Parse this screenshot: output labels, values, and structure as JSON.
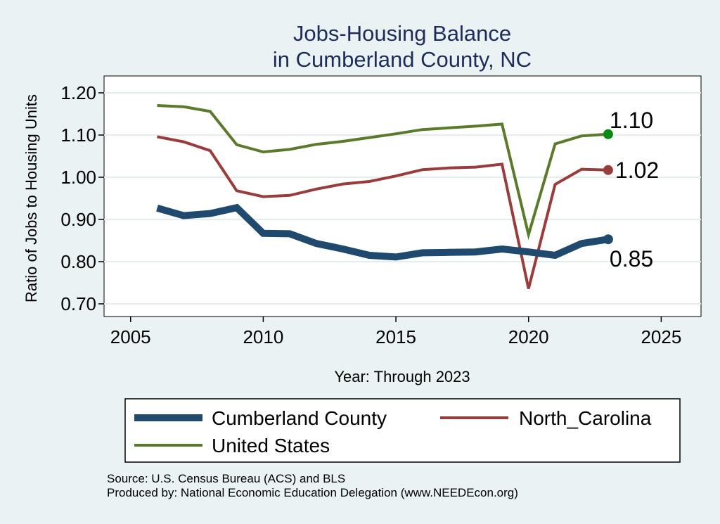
{
  "chart_data": {
    "type": "line",
    "title": [
      "Jobs-Housing Balance",
      "in Cumberland County, NC"
    ],
    "xlabel": "Year: Through 2023",
    "ylabel": "Ratio of Jobs to Housing Units",
    "xlim": [
      2004,
      2026.5
    ],
    "ylim": [
      0.67,
      1.24
    ],
    "x_ticks": [
      2005,
      2010,
      2015,
      2020,
      2025
    ],
    "y_ticks": [
      0.7,
      0.8,
      0.9,
      1.0,
      1.1,
      1.2
    ],
    "y_tick_labels": [
      "0.70",
      "0.80",
      "0.90",
      "1.00",
      "1.10",
      "1.20"
    ],
    "grid": true,
    "x": [
      2006,
      2007,
      2008,
      2009,
      2010,
      2011,
      2012,
      2013,
      2014,
      2015,
      2016,
      2017,
      2018,
      2019,
      2020,
      2021,
      2022,
      2023
    ],
    "series": [
      {
        "name": "United States",
        "color": "#5b7a2b",
        "width": 4,
        "end_color": "#0a8a13",
        "end_label": "1.10",
        "values": [
          1.17,
          1.167,
          1.156,
          1.077,
          1.06,
          1.066,
          1.078,
          1.085,
          1.094,
          1.103,
          1.113,
          1.117,
          1.121,
          1.126,
          0.864,
          1.079,
          1.098,
          1.102
        ]
      },
      {
        "name": "North_Carolina",
        "color": "#993c3c",
        "width": 4,
        "end_color": "#993c3c",
        "end_label": "1.02",
        "values": [
          1.096,
          1.084,
          1.063,
          0.968,
          0.954,
          0.957,
          0.972,
          0.984,
          0.99,
          1.003,
          1.018,
          1.022,
          1.024,
          1.031,
          0.736,
          0.983,
          1.019,
          1.017
        ]
      },
      {
        "name": "Cumberland County",
        "color": "#1f4a6e",
        "width": 10,
        "end_color": "#1f4a6e",
        "end_label": "0.85",
        "values": [
          0.927,
          0.909,
          0.914,
          0.928,
          0.867,
          0.866,
          0.843,
          0.83,
          0.815,
          0.811,
          0.821,
          0.822,
          0.823,
          0.83,
          0.823,
          0.815,
          0.843,
          0.853
        ]
      }
    ],
    "legend": {
      "placement": "bottom",
      "items": [
        "Cumberland County",
        "North_Carolina",
        "United States"
      ]
    }
  },
  "footer": {
    "source": "Source: U.S. Census Bureau (ACS) and BLS",
    "produced_by": "Produced by: National Economic Education Delegation (www.NEEDEcon.org)"
  }
}
